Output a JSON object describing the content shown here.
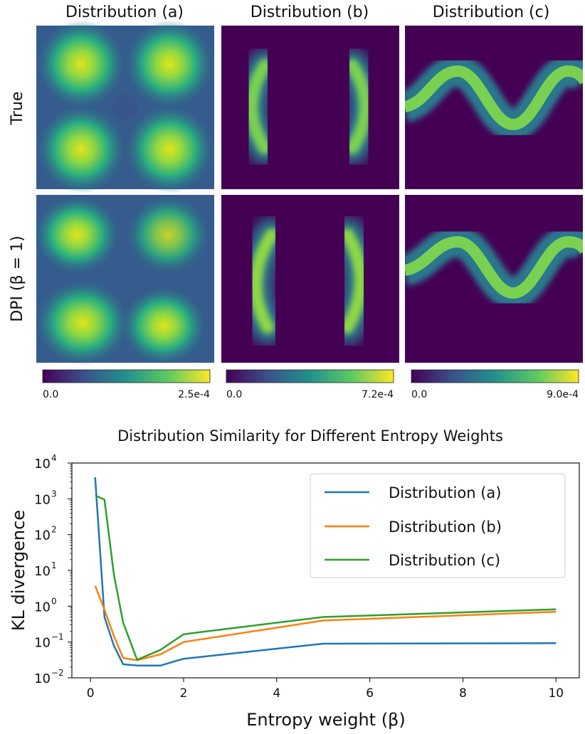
{
  "figure": {
    "column_titles": [
      "Distribution (a)",
      "Distribution (b)",
      "Distribution (c)"
    ],
    "row_labels": [
      "True",
      "DPI (β = 1)"
    ],
    "colorbars": [
      {
        "min_label": "0.0",
        "max_label": "2.5e-4"
      },
      {
        "min_label": "0.0",
        "max_label": "7.2e-4"
      },
      {
        "min_label": "0.0",
        "max_label": "9.0e-4"
      }
    ],
    "colormap": [
      "#440154",
      "#3b528b",
      "#21918c",
      "#5ec962",
      "#fde725"
    ]
  },
  "chart_data": {
    "type": "line",
    "title": "Distribution Similarity for Different Entropy Weights",
    "xlabel": "Entropy weight (β)",
    "ylabel": "KL divergence",
    "yscale": "log",
    "xlim": [
      -0.4,
      10.5
    ],
    "ylim_log10": [
      -2,
      4
    ],
    "xticks": [
      0,
      2,
      4,
      6,
      8,
      10
    ],
    "xtick_labels": [
      "0",
      "2",
      "4",
      "6",
      "8",
      "10"
    ],
    "ytick_exponents": [
      -2,
      -1,
      0,
      1,
      2,
      3,
      4
    ],
    "ytick_labels": [
      "10",
      "10",
      "10",
      "10",
      "10",
      "10",
      "10"
    ],
    "ytick_sup": [
      "−2",
      "−1",
      "0",
      "1",
      "2",
      "3",
      "4"
    ],
    "legend_position": "top-right",
    "series": [
      {
        "name": "Distribution (a)",
        "color": "#1f77b4",
        "x": [
          0.1,
          0.3,
          0.5,
          0.7,
          1.0,
          1.5,
          2.0,
          5.0,
          10.0
        ],
        "y": [
          4000,
          0.5,
          0.08,
          0.024,
          0.022,
          0.022,
          0.034,
          0.09,
          0.093
        ]
      },
      {
        "name": "Distribution (b)",
        "color": "#ff7f0e",
        "x": [
          0.1,
          0.3,
          0.5,
          0.7,
          1.0,
          1.5,
          2.0,
          5.0,
          10.0
        ],
        "y": [
          3.7,
          0.8,
          0.15,
          0.036,
          0.031,
          0.045,
          0.1,
          0.4,
          0.7
        ]
      },
      {
        "name": "Distribution (c)",
        "color": "#2ca02c",
        "x": [
          0.1,
          0.3,
          0.5,
          0.7,
          1.0,
          1.5,
          2.0,
          5.0,
          10.0
        ],
        "y": [
          1250,
          950,
          8.0,
          0.35,
          0.032,
          0.06,
          0.165,
          0.5,
          0.82
        ]
      }
    ]
  }
}
